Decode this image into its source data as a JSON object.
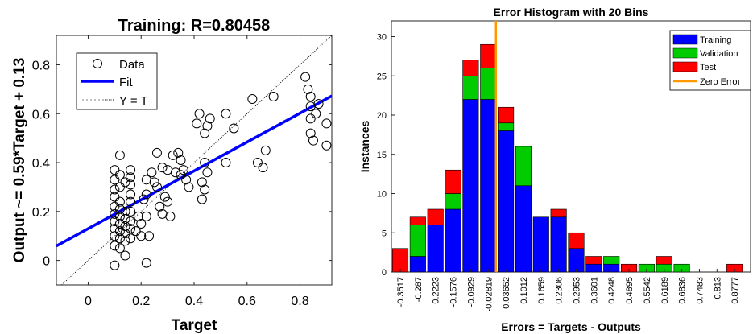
{
  "chart_data": [
    {
      "type": "scatter",
      "title": "Training: R=0.80458",
      "xlabel": "Target",
      "ylabel": "Output ~= 0.59*Target + 0.13",
      "xlim": [
        -0.12,
        0.92
      ],
      "ylim": [
        -0.1,
        0.92
      ],
      "xticks": [
        0,
        0.2,
        0.4,
        0.6,
        0.8
      ],
      "yticks": [
        0,
        0.2,
        0.4,
        0.6,
        0.8
      ],
      "xtick_labels": [
        "0",
        "0.2",
        "0.4",
        "0.6",
        "0.8"
      ],
      "ytick_labels": [
        "0",
        "0.2",
        "0.4",
        "0.6",
        "0.8"
      ],
      "legend": {
        "placement": "top-left",
        "entries": [
          "Data",
          "Fit",
          "Y = T"
        ]
      },
      "fit": {
        "slope": 0.59,
        "intercept": 0.13,
        "color": "#0000FF"
      },
      "identity_line": {
        "color": "#000000"
      },
      "points": [
        [
          0.1,
          0.37
        ],
        [
          0.1,
          0.33
        ],
        [
          0.1,
          0.29
        ],
        [
          0.1,
          0.26
        ],
        [
          0.1,
          0.22
        ],
        [
          0.1,
          0.19
        ],
        [
          0.1,
          0.16
        ],
        [
          0.1,
          0.13
        ],
        [
          0.1,
          0.1
        ],
        [
          0.1,
          0.06
        ],
        [
          0.1,
          -0.02
        ],
        [
          0.12,
          0.35
        ],
        [
          0.12,
          0.3
        ],
        [
          0.12,
          0.24
        ],
        [
          0.12,
          0.21
        ],
        [
          0.12,
          0.18
        ],
        [
          0.12,
          0.15
        ],
        [
          0.12,
          0.12
        ],
        [
          0.12,
          0.09
        ],
        [
          0.12,
          0.05
        ],
        [
          0.12,
          0.43
        ],
        [
          0.14,
          0.32
        ],
        [
          0.14,
          0.2
        ],
        [
          0.14,
          0.17
        ],
        [
          0.14,
          0.14
        ],
        [
          0.14,
          0.11
        ],
        [
          0.14,
          0.08
        ],
        [
          0.14,
          0.02
        ],
        [
          0.16,
          0.37
        ],
        [
          0.16,
          0.34
        ],
        [
          0.16,
          0.31
        ],
        [
          0.16,
          0.27
        ],
        [
          0.16,
          0.24
        ],
        [
          0.16,
          0.2
        ],
        [
          0.16,
          0.16
        ],
        [
          0.16,
          0.13
        ],
        [
          0.16,
          0.09
        ],
        [
          0.18,
          0.12
        ],
        [
          0.19,
          0.18
        ],
        [
          0.2,
          0.1
        ],
        [
          0.2,
          0.15
        ],
        [
          0.21,
          0.25
        ],
        [
          0.22,
          0.33
        ],
        [
          0.22,
          0.27
        ],
        [
          0.22,
          0.18
        ],
        [
          0.23,
          0.1
        ],
        [
          0.22,
          -0.01
        ],
        [
          0.24,
          0.36
        ],
        [
          0.25,
          0.32
        ],
        [
          0.26,
          0.44
        ],
        [
          0.26,
          0.3
        ],
        [
          0.27,
          0.22
        ],
        [
          0.28,
          0.19
        ],
        [
          0.28,
          0.38
        ],
        [
          0.29,
          0.26
        ],
        [
          0.3,
          0.37
        ],
        [
          0.3,
          0.24
        ],
        [
          0.31,
          0.18
        ],
        [
          0.32,
          0.43
        ],
        [
          0.33,
          0.36
        ],
        [
          0.34,
          0.44
        ],
        [
          0.35,
          0.35
        ],
        [
          0.35,
          0.41
        ],
        [
          0.36,
          0.37
        ],
        [
          0.37,
          0.33
        ],
        [
          0.38,
          0.3
        ],
        [
          0.41,
          0.56
        ],
        [
          0.42,
          0.6
        ],
        [
          0.44,
          0.52
        ],
        [
          0.44,
          0.4
        ],
        [
          0.43,
          0.32
        ],
        [
          0.44,
          0.29
        ],
        [
          0.43,
          0.25
        ],
        [
          0.45,
          0.36
        ],
        [
          0.45,
          0.55
        ],
        [
          0.46,
          0.58
        ],
        [
          0.52,
          0.6
        ],
        [
          0.52,
          0.4
        ],
        [
          0.55,
          0.54
        ],
        [
          0.62,
          0.66
        ],
        [
          0.64,
          0.4
        ],
        [
          0.66,
          0.38
        ],
        [
          0.67,
          0.45
        ],
        [
          0.7,
          0.67
        ],
        [
          0.82,
          0.75
        ],
        [
          0.83,
          0.7
        ],
        [
          0.84,
          0.67
        ],
        [
          0.84,
          0.63
        ],
        [
          0.84,
          0.58
        ],
        [
          0.84,
          0.52
        ],
        [
          0.85,
          0.49
        ],
        [
          0.86,
          0.6
        ],
        [
          0.87,
          0.64
        ],
        [
          0.9,
          0.56
        ],
        [
          0.9,
          0.47
        ]
      ]
    },
    {
      "type": "bar",
      "stacked": true,
      "title": "Error Histogram with 20 Bins",
      "xlabel": "Errors = Targets - Outputs",
      "ylabel": "Instances",
      "ylim": [
        0,
        32
      ],
      "yticks": [
        0,
        5,
        10,
        15,
        20,
        25,
        30
      ],
      "categories": [
        "-0.3517",
        "-0.287",
        "-0.2223",
        "-0.1576",
        "-0.0929",
        "-0.02819",
        "0.03652",
        "0.1012",
        "0.1659",
        "0.2306",
        "0.2953",
        "0.3601",
        "0.4248",
        "0.4895",
        "0.5542",
        "0.6189",
        "0.6836",
        "0.7483",
        "0.813",
        "0.8777"
      ],
      "series": [
        {
          "name": "Training",
          "color": "#0000FF",
          "values": [
            0,
            2,
            6,
            8,
            22,
            22,
            18,
            11,
            7,
            7,
            3,
            1,
            1,
            0,
            0,
            0,
            0,
            0,
            0,
            0
          ]
        },
        {
          "name": "Validation",
          "color": "#00CC00",
          "values": [
            0,
            4,
            0,
            2,
            3,
            4,
            1,
            5,
            0,
            0,
            0,
            0,
            1,
            0,
            1,
            1,
            1,
            0,
            0,
            0
          ]
        },
        {
          "name": "Test",
          "color": "#FF0000",
          "values": [
            3,
            1,
            2,
            3,
            2,
            3,
            2,
            0,
            0,
            1,
            2,
            1,
            0,
            1,
            0,
            1,
            0,
            0,
            0,
            1
          ]
        }
      ],
      "zero_error": {
        "name": "Zero Error",
        "value": 0,
        "color": "#FF9900"
      },
      "legend": {
        "placement": "top-right"
      }
    }
  ]
}
